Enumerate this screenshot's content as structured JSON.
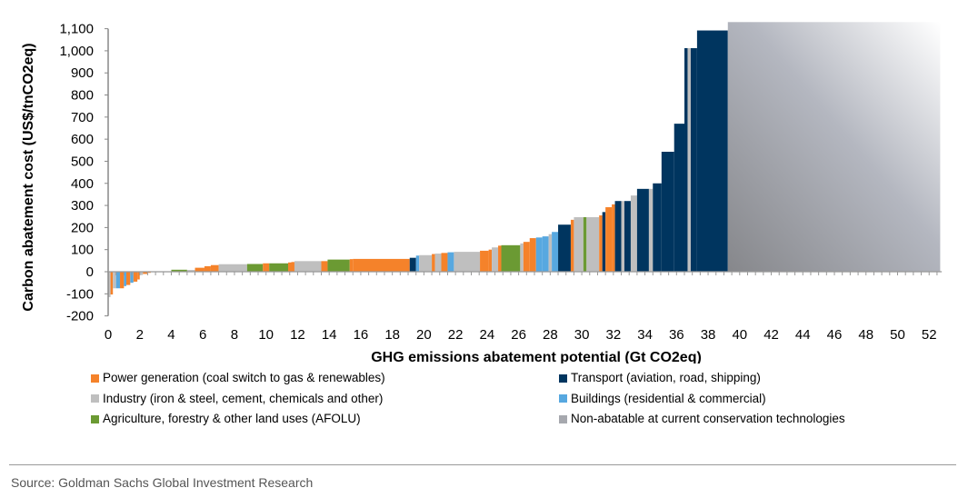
{
  "chart_data": {
    "type": "bar",
    "subtype": "marginal-abatement-cost-curve",
    "xlabel": "GHG emissions abatement potential  (Gt CO2eq)",
    "ylabel": "Carbon abatement cost (US$/tnCO2eq)",
    "xlim": [
      0,
      53
    ],
    "ylim": [
      -200,
      1100
    ],
    "xticks": [
      0,
      2,
      4,
      6,
      8,
      10,
      12,
      14,
      16,
      18,
      20,
      22,
      24,
      26,
      28,
      30,
      32,
      34,
      36,
      38,
      40,
      42,
      44,
      46,
      48,
      50,
      52
    ],
    "yticks": [
      -200,
      -100,
      0,
      100,
      200,
      300,
      400,
      500,
      600,
      700,
      800,
      900,
      1000,
      1100
    ],
    "ytick_labels": [
      "-200",
      "-100",
      "0",
      "100",
      "200",
      "300",
      "400",
      "500",
      "600",
      "700",
      "800",
      "900",
      "1,000",
      "1,100"
    ],
    "grid": false,
    "legend_position": "bottom",
    "categories": {
      "power": {
        "label": "Power generation (coal switch to gas & renewables)",
        "color": "#F5822A"
      },
      "industry": {
        "label": "Industry (iron & steel, cement, chemicals and other)",
        "color": "#BFBFBF"
      },
      "afolu": {
        "label": "Agriculture, forestry & other land uses (AFOLU)",
        "color": "#6B9A33"
      },
      "transport": {
        "label": "Transport (aviation, road, shipping)",
        "color": "#00355F"
      },
      "buildings": {
        "label": "Buildings (residential & commercial)",
        "color": "#57A8E0"
      },
      "nonabatable": {
        "label": "Non-abatable at current conservation technologies",
        "color": "#A6A8AE"
      }
    },
    "legend_left": [
      "power",
      "industry",
      "afolu"
    ],
    "legend_right": [
      "transport",
      "buildings",
      "nonabatable"
    ],
    "bars": [
      {
        "x0": 0.0,
        "x1": 0.15,
        "value": -115,
        "category": "industry"
      },
      {
        "x0": 0.15,
        "x1": 0.3,
        "value": -103,
        "category": "power"
      },
      {
        "x0": 0.3,
        "x1": 0.5,
        "value": -75,
        "category": "industry"
      },
      {
        "x0": 0.5,
        "x1": 0.75,
        "value": -75,
        "category": "buildings"
      },
      {
        "x0": 0.75,
        "x1": 1.0,
        "value": -75,
        "category": "power"
      },
      {
        "x0": 1.0,
        "x1": 1.15,
        "value": -65,
        "category": "buildings"
      },
      {
        "x0": 1.15,
        "x1": 1.4,
        "value": -60,
        "category": "power"
      },
      {
        "x0": 1.4,
        "x1": 1.6,
        "value": -50,
        "category": "buildings"
      },
      {
        "x0": 1.6,
        "x1": 1.85,
        "value": -45,
        "category": "power"
      },
      {
        "x0": 1.85,
        "x1": 2.0,
        "value": -35,
        "category": "power"
      },
      {
        "x0": 2.0,
        "x1": 2.2,
        "value": -15,
        "category": "industry"
      },
      {
        "x0": 2.2,
        "x1": 2.5,
        "value": -10,
        "category": "power"
      },
      {
        "x0": 2.5,
        "x1": 2.7,
        "value": -5,
        "category": "power"
      },
      {
        "x0": 2.7,
        "x1": 4.0,
        "value": -2,
        "category": "industry"
      },
      {
        "x0": 4.0,
        "x1": 5.0,
        "value": 9,
        "category": "afolu"
      },
      {
        "x0": 5.0,
        "x1": 5.5,
        "value": 8,
        "category": "industry"
      },
      {
        "x0": 5.5,
        "x1": 6.1,
        "value": 18,
        "category": "power"
      },
      {
        "x0": 6.1,
        "x1": 6.5,
        "value": 25,
        "category": "power"
      },
      {
        "x0": 6.5,
        "x1": 7.0,
        "value": 30,
        "category": "power"
      },
      {
        "x0": 7.0,
        "x1": 8.8,
        "value": 34,
        "category": "industry"
      },
      {
        "x0": 8.8,
        "x1": 9.8,
        "value": 35,
        "category": "afolu"
      },
      {
        "x0": 9.8,
        "x1": 10.2,
        "value": 38,
        "category": "power"
      },
      {
        "x0": 10.2,
        "x1": 11.4,
        "value": 38,
        "category": "afolu"
      },
      {
        "x0": 11.4,
        "x1": 11.6,
        "value": 42,
        "category": "power"
      },
      {
        "x0": 11.6,
        "x1": 11.8,
        "value": 44,
        "category": "power"
      },
      {
        "x0": 11.8,
        "x1": 13.5,
        "value": 48,
        "category": "industry"
      },
      {
        "x0": 13.5,
        "x1": 13.9,
        "value": 48,
        "category": "power"
      },
      {
        "x0": 13.9,
        "x1": 15.3,
        "value": 55,
        "category": "afolu"
      },
      {
        "x0": 15.3,
        "x1": 15.5,
        "value": 57,
        "category": "power"
      },
      {
        "x0": 15.5,
        "x1": 19.1,
        "value": 58,
        "category": "power"
      },
      {
        "x0": 19.1,
        "x1": 19.5,
        "value": 63,
        "category": "transport"
      },
      {
        "x0": 19.5,
        "x1": 19.7,
        "value": 73,
        "category": "buildings"
      },
      {
        "x0": 19.7,
        "x1": 20.5,
        "value": 75,
        "category": "industry"
      },
      {
        "x0": 20.5,
        "x1": 20.7,
        "value": 80,
        "category": "power"
      },
      {
        "x0": 20.7,
        "x1": 21.1,
        "value": 82,
        "category": "industry"
      },
      {
        "x0": 21.1,
        "x1": 21.5,
        "value": 85,
        "category": "power"
      },
      {
        "x0": 21.5,
        "x1": 21.9,
        "value": 88,
        "category": "buildings"
      },
      {
        "x0": 21.9,
        "x1": 23.55,
        "value": 90,
        "category": "industry"
      },
      {
        "x0": 23.55,
        "x1": 24.1,
        "value": 95,
        "category": "power"
      },
      {
        "x0": 24.1,
        "x1": 24.3,
        "value": 100,
        "category": "power"
      },
      {
        "x0": 24.3,
        "x1": 24.7,
        "value": 110,
        "category": "industry"
      },
      {
        "x0": 24.7,
        "x1": 24.9,
        "value": 118,
        "category": "power"
      },
      {
        "x0": 24.9,
        "x1": 26.1,
        "value": 120,
        "category": "afolu"
      },
      {
        "x0": 26.1,
        "x1": 26.3,
        "value": 128,
        "category": "industry"
      },
      {
        "x0": 26.3,
        "x1": 26.7,
        "value": 135,
        "category": "power"
      },
      {
        "x0": 26.7,
        "x1": 27.1,
        "value": 152,
        "category": "power"
      },
      {
        "x0": 27.1,
        "x1": 27.5,
        "value": 155,
        "category": "buildings"
      },
      {
        "x0": 27.5,
        "x1": 27.9,
        "value": 160,
        "category": "buildings"
      },
      {
        "x0": 27.9,
        "x1": 28.1,
        "value": 170,
        "category": "industry"
      },
      {
        "x0": 28.1,
        "x1": 28.5,
        "value": 180,
        "category": "buildings"
      },
      {
        "x0": 28.5,
        "x1": 29.3,
        "value": 213,
        "category": "transport"
      },
      {
        "x0": 29.3,
        "x1": 29.5,
        "value": 235,
        "category": "power"
      },
      {
        "x0": 29.5,
        "x1": 30.1,
        "value": 247,
        "category": "industry"
      },
      {
        "x0": 30.1,
        "x1": 30.3,
        "value": 247,
        "category": "afolu"
      },
      {
        "x0": 30.3,
        "x1": 31.1,
        "value": 247,
        "category": "industry"
      },
      {
        "x0": 31.1,
        "x1": 31.3,
        "value": 255,
        "category": "power"
      },
      {
        "x0": 31.3,
        "x1": 31.5,
        "value": 270,
        "category": "transport"
      },
      {
        "x0": 31.5,
        "x1": 31.9,
        "value": 292,
        "category": "power"
      },
      {
        "x0": 31.9,
        "x1": 32.1,
        "value": 305,
        "category": "power"
      },
      {
        "x0": 32.1,
        "x1": 32.5,
        "value": 320,
        "category": "transport"
      },
      {
        "x0": 32.5,
        "x1": 32.7,
        "value": 320,
        "category": "industry"
      },
      {
        "x0": 32.7,
        "x1": 33.1,
        "value": 320,
        "category": "transport"
      },
      {
        "x0": 33.1,
        "x1": 33.5,
        "value": 345,
        "category": "industry"
      },
      {
        "x0": 33.5,
        "x1": 34.25,
        "value": 375,
        "category": "transport"
      },
      {
        "x0": 34.25,
        "x1": 34.5,
        "value": 375,
        "category": "industry"
      },
      {
        "x0": 34.5,
        "x1": 35.05,
        "value": 400,
        "category": "transport"
      },
      {
        "x0": 35.05,
        "x1": 35.85,
        "value": 543,
        "category": "transport"
      },
      {
        "x0": 35.85,
        "x1": 36.5,
        "value": 670,
        "category": "transport"
      },
      {
        "x0": 36.5,
        "x1": 36.7,
        "value": 1012,
        "category": "transport"
      },
      {
        "x0": 36.7,
        "x1": 36.9,
        "value": 1012,
        "category": "industry"
      },
      {
        "x0": 36.9,
        "x1": 37.3,
        "value": 1012,
        "category": "transport"
      },
      {
        "x0": 37.3,
        "x1": 39.25,
        "value": 1092,
        "category": "transport"
      },
      {
        "x0": 39.25,
        "x1": 52.7,
        "value": 1130,
        "category": "nonabatable"
      }
    ]
  },
  "source": "Source: Goldman Sachs Global Investment Research"
}
